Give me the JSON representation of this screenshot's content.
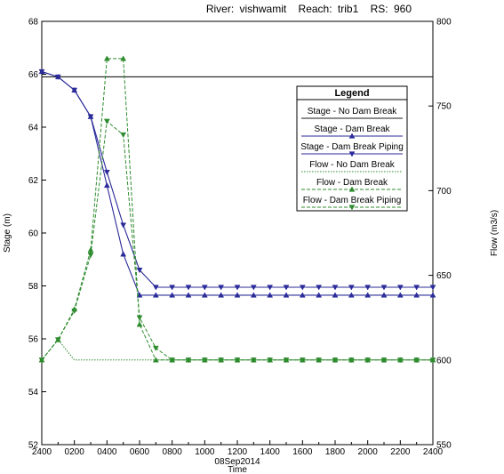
{
  "header": {
    "river_label": "River:",
    "river": "vishwamit",
    "reach_label": "Reach:",
    "reach": "trib1",
    "rs_label": "RS:",
    "rs": "960"
  },
  "colors": {
    "stage": "#2b2b9a",
    "flow": "#2e8b2e",
    "no_break_line": "#1a1a1a"
  },
  "chart_data": {
    "type": "line",
    "x": [
      "2400",
      "0100",
      "0200",
      "0300",
      "0400",
      "0500",
      "0600",
      "0700",
      "0800",
      "0900",
      "1000",
      "1100",
      "1200",
      "1300",
      "1400",
      "1500",
      "1600",
      "1700",
      "1800",
      "1900",
      "2000",
      "2100",
      "2200",
      "2300",
      "2400"
    ],
    "x_tick_labels": [
      "2400",
      "0200",
      "0400",
      "0600",
      "0800",
      "1000",
      "1200",
      "1400",
      "1600",
      "1800",
      "2000",
      "2200",
      "2400"
    ],
    "x_date_label": "08Sep2014",
    "xlabel": "Time",
    "ylabel_left": "Stage (m)",
    "ylabel_right": "Flow (m3/s)",
    "ylim_left": [
      52,
      68
    ],
    "ylim_right": [
      550,
      800
    ],
    "left_ticks": [
      52,
      54,
      56,
      58,
      60,
      62,
      64,
      66,
      68
    ],
    "right_ticks": [
      550,
      600,
      650,
      700,
      750,
      800
    ],
    "grid": false,
    "legend_title": "Legend",
    "legend_position": "top-right",
    "series": [
      {
        "name": "Stage - No Dam Break",
        "axis": "left",
        "style": "solid",
        "marker": "none",
        "color": "#1a1a1a",
        "values": [
          65.9,
          65.9,
          65.9,
          65.9,
          65.9,
          65.9,
          65.9,
          65.9,
          65.9,
          65.9,
          65.9,
          65.9,
          65.9,
          65.9,
          65.9,
          65.9,
          65.9,
          65.9,
          65.9,
          65.9,
          65.9,
          65.9,
          65.9,
          65.9,
          65.9
        ]
      },
      {
        "name": "Stage - Dam Break",
        "axis": "left",
        "style": "solid",
        "marker": "triangle-up",
        "color": "#2b2b9a",
        "values": [
          66.1,
          65.9,
          65.4,
          64.4,
          61.8,
          59.2,
          57.65,
          57.65,
          57.65,
          57.65,
          57.65,
          57.65,
          57.65,
          57.65,
          57.65,
          57.65,
          57.65,
          57.65,
          57.65,
          57.65,
          57.65,
          57.65,
          57.65,
          57.65,
          57.65
        ]
      },
      {
        "name": "Stage - Dam Break Piping",
        "axis": "left",
        "style": "solid",
        "marker": "triangle-down",
        "color": "#2b2b9a",
        "values": [
          66.1,
          65.9,
          65.4,
          64.4,
          62.3,
          60.3,
          58.6,
          57.95,
          57.95,
          57.95,
          57.95,
          57.95,
          57.95,
          57.95,
          57.95,
          57.95,
          57.95,
          57.95,
          57.95,
          57.95,
          57.95,
          57.95,
          57.95,
          57.95,
          57.95
        ]
      },
      {
        "name": "Flow - No Dam Break",
        "axis": "right",
        "style": "dotted",
        "marker": "none",
        "color": "#2e8b2e",
        "values": [
          600,
          612,
          600,
          600,
          600,
          600,
          600,
          600,
          600,
          600,
          600,
          600,
          600,
          600,
          600,
          600,
          600,
          600,
          600,
          600,
          600,
          600,
          600,
          600,
          600
        ]
      },
      {
        "name": "Flow - Dam Break",
        "axis": "right",
        "style": "dashed",
        "marker": "triangle-up",
        "color": "#2e8b2e",
        "values": [
          600,
          612,
          630,
          665,
          778,
          778,
          621,
          600,
          600,
          600,
          600,
          600,
          600,
          600,
          600,
          600,
          600,
          600,
          600,
          600,
          600,
          600,
          600,
          600,
          600
        ]
      },
      {
        "name": "Flow - Dam Break Piping",
        "axis": "right",
        "style": "dashed",
        "marker": "triangle-down",
        "color": "#2e8b2e",
        "values": [
          600,
          612,
          629,
          662,
          741,
          733,
          625,
          607,
          600,
          600,
          600,
          600,
          600,
          600,
          600,
          600,
          600,
          600,
          600,
          600,
          600,
          600,
          600,
          600,
          600
        ]
      }
    ]
  }
}
